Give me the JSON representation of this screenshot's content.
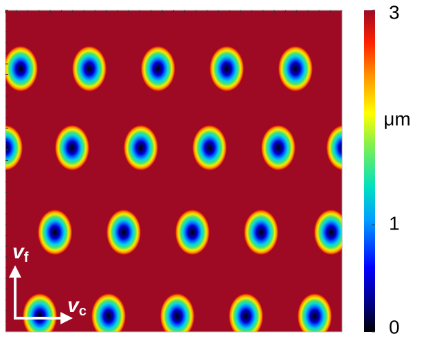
{
  "chart_data": {
    "type": "heatmap",
    "colormap": "jet",
    "colorbar": {
      "label": "μm",
      "lim": [
        0,
        3
      ],
      "ticks": [
        0,
        1,
        3
      ]
    },
    "annotations": [
      {
        "text": "v",
        "subscript": "f"
      },
      {
        "text": "v",
        "subscript": "c"
      }
    ]
  }
}
